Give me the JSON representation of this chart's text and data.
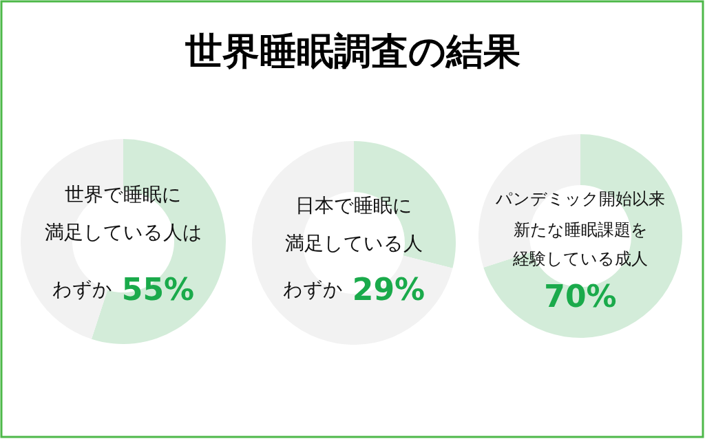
{
  "chart_data": [
    {
      "type": "donut",
      "title": "世界睡眠調査の結果",
      "categories": [
        null,
        null
      ],
      "values": [
        55,
        45
      ],
      "colors": [
        "#d3ecd9",
        "#f2f2f2"
      ],
      "annotations": [
        "世界で睡眠に",
        "満足している人は",
        "わずか",
        "55%"
      ]
    },
    {
      "type": "donut",
      "categories": [
        null,
        null
      ],
      "values": [
        29,
        71
      ],
      "colors": [
        "#d3ecd9",
        "#f2f2f2"
      ],
      "annotations": [
        "日本で睡眠に",
        "満足している人",
        "わずか",
        "29%"
      ]
    },
    {
      "type": "donut",
      "categories": [
        null,
        null
      ],
      "values": [
        70,
        30
      ],
      "colors": [
        "#d3ecd9",
        "#f2f2f2"
      ],
      "annotations": [
        "パンデミック開始以来",
        "新たな睡眠課題を",
        "経験している成人",
        "70%"
      ]
    }
  ]
}
